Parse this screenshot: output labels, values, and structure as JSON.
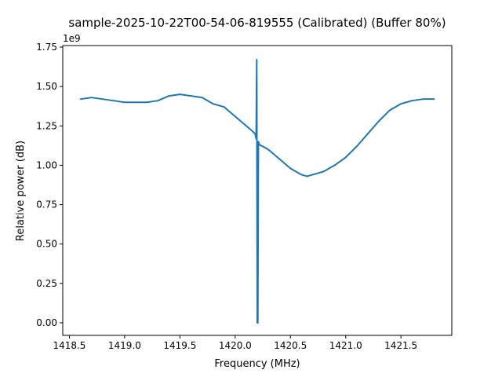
{
  "chart_data": {
    "type": "line",
    "title": "sample-2025-10-22T00-54-06-819555 (Calibrated) (Buffer 80%)",
    "xlabel": "Frequency (MHz)",
    "ylabel": "Relative power (dB)",
    "y_multiplier_label": "1e9",
    "xlim": [
      1418.44,
      1421.96
    ],
    "ylim": [
      -0.08,
      1.76
    ],
    "y_unit_scale": 1000000000,
    "x_ticks": [
      1418.5,
      1419.0,
      1419.5,
      1420.0,
      1420.5,
      1421.0,
      1421.5
    ],
    "x_tick_labels": [
      "1418.5",
      "1419.0",
      "1419.5",
      "1420.0",
      "1420.5",
      "1421.0",
      "1421.5"
    ],
    "y_ticks": [
      0.0,
      0.25,
      0.5,
      0.75,
      1.0,
      1.25,
      1.5,
      1.75
    ],
    "y_tick_labels": [
      "0.00",
      "0.25",
      "0.50",
      "0.75",
      "1.00",
      "1.25",
      "1.50",
      "1.75"
    ],
    "grid": false,
    "legend": "none",
    "line_color": "#1f77b4",
    "series": [
      {
        "x": [
          1418.6,
          1418.7,
          1418.8,
          1418.9,
          1419.0,
          1419.1,
          1419.2,
          1419.3,
          1419.4,
          1419.5,
          1419.6,
          1419.7,
          1419.8,
          1419.9,
          1420.0,
          1420.1,
          1420.15,
          1420.18,
          1420.19,
          1420.195,
          1420.2,
          1420.205,
          1420.21,
          1420.22,
          1420.25,
          1420.3,
          1420.4,
          1420.5,
          1420.6,
          1420.65,
          1420.7,
          1420.8,
          1420.9,
          1421.0,
          1421.1,
          1421.2,
          1421.3,
          1421.4,
          1421.5,
          1421.6,
          1421.7,
          1421.8
        ],
        "y": [
          1.42,
          1.43,
          1.42,
          1.41,
          1.4,
          1.4,
          1.4,
          1.41,
          1.44,
          1.45,
          1.44,
          1.43,
          1.39,
          1.37,
          1.31,
          1.25,
          1.22,
          1.2,
          1.17,
          1.67,
          0.0,
          0.0,
          1.15,
          1.13,
          1.12,
          1.1,
          1.04,
          0.98,
          0.94,
          0.93,
          0.94,
          0.96,
          1.0,
          1.05,
          1.12,
          1.2,
          1.28,
          1.35,
          1.39,
          1.41,
          1.42,
          1.42
        ]
      }
    ]
  }
}
